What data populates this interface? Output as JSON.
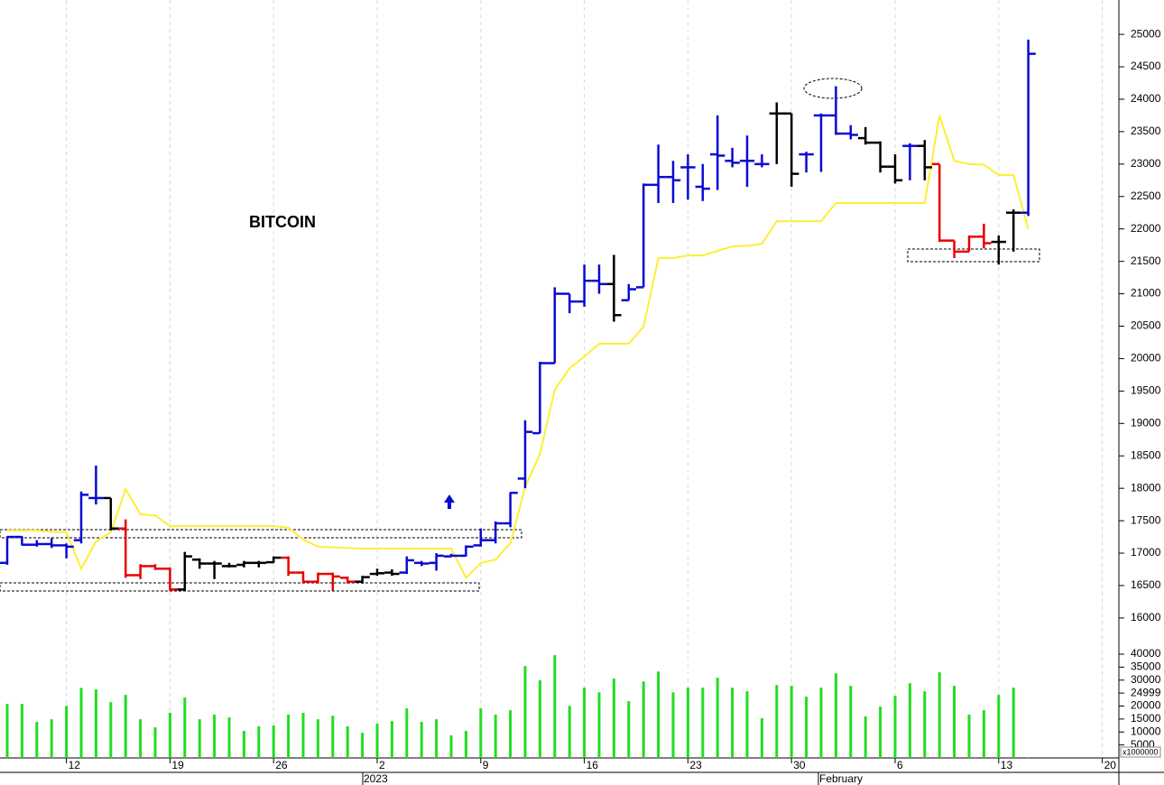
{
  "chart_data": {
    "type": "ohlc",
    "title": "BITCOIN",
    "categories": [
      null,
      null,
      null,
      null,
      "12",
      null,
      null,
      null,
      null,
      null,
      null,
      "19",
      null,
      null,
      null,
      null,
      null,
      null,
      "26",
      null,
      null,
      null,
      null,
      null,
      null,
      "2",
      null,
      null,
      null,
      null,
      null,
      null,
      "9",
      null,
      null,
      null,
      null,
      null,
      null,
      "16",
      null,
      null,
      null,
      null,
      null,
      null,
      "23",
      null,
      null,
      null,
      null,
      null,
      null,
      "30",
      null,
      null,
      null,
      null,
      null,
      null,
      "6",
      null,
      null,
      null,
      null,
      null,
      null,
      "13",
      null,
      null,
      null,
      null,
      null,
      null,
      "20"
    ],
    "period_labels": [
      "2023",
      "February"
    ],
    "open": [
      16850,
      17250,
      17130,
      17140,
      17120,
      17200,
      17850,
      17850,
      17380,
      16660,
      16800,
      16760,
      16440,
      16900,
      16840,
      16800,
      16820,
      16850,
      16860,
      16930,
      16700,
      16560,
      16680,
      16620,
      16560,
      16680,
      16700,
      16700,
      16850,
      16850,
      16950,
      16960,
      17120,
      17200,
      17460,
      18150,
      18850,
      19930,
      21000,
      20880,
      21200,
      21150,
      20900,
      21100,
      22680,
      22800,
      22950,
      22650,
      23150,
      23050,
      23050,
      23000,
      23780,
      23780,
      23150,
      23750,
      23750,
      23470,
      23400,
      23330,
      22960,
      23280,
      23280,
      23000,
      21820,
      21650,
      21880,
      21800,
      22250,
      22250,
      null,
      null,
      null,
      null,
      null
    ],
    "high": [
      17260,
      17260,
      17200,
      17230,
      17150,
      17950,
      18350,
      17850,
      17520,
      16830,
      16830,
      16780,
      17020,
      16920,
      16880,
      16850,
      16880,
      16880,
      16950,
      16950,
      16720,
      16700,
      16700,
      16640,
      16650,
      16760,
      16750,
      16950,
      16880,
      17000,
      16990,
      17120,
      17380,
      17490,
      17940,
      19050,
      19950,
      21100,
      21000,
      21450,
      21450,
      21600,
      21150,
      22700,
      23300,
      23050,
      23150,
      23000,
      23750,
      23250,
      23440,
      23150,
      23950,
      23780,
      23190,
      23780,
      24200,
      23600,
      23570,
      23350,
      23150,
      23320,
      23370,
      23000,
      21820,
      21900,
      22080,
      21900,
      22300,
      24920,
      null,
      null,
      null,
      null,
      null
    ],
    "low": [
      16820,
      17120,
      17100,
      17080,
      16920,
      17150,
      17750,
      17350,
      16620,
      16600,
      16740,
      16420,
      16420,
      16760,
      16600,
      16780,
      16780,
      16780,
      16850,
      16650,
      16530,
      16530,
      16420,
      16530,
      16530,
      16650,
      16650,
      16680,
      16800,
      16730,
      16940,
      16950,
      17100,
      17150,
      17400,
      18000,
      18850,
      19930,
      20700,
      20800,
      21000,
      20570,
      20900,
      21100,
      22400,
      22400,
      22450,
      22430,
      22600,
      22950,
      22650,
      22950,
      23000,
      22650,
      22870,
      22880,
      23450,
      23380,
      23300,
      22870,
      22700,
      22750,
      22750,
      21800,
      21550,
      21650,
      21700,
      21450,
      21650,
      22200,
      null,
      null,
      null,
      null,
      null
    ],
    "close": [
      17250,
      17130,
      17140,
      17120,
      17100,
      17900,
      17850,
      17380,
      16660,
      16800,
      16760,
      16440,
      16950,
      16840,
      16840,
      16800,
      16850,
      16850,
      16930,
      16700,
      16560,
      16680,
      16640,
      16560,
      16630,
      16690,
      16680,
      16890,
      16840,
      16960,
      16960,
      17100,
      17200,
      17460,
      17930,
      18870,
      19930,
      21000,
      20880,
      21200,
      21150,
      20670,
      21070,
      22680,
      22800,
      22750,
      22950,
      22620,
      23130,
      23020,
      23050,
      23000,
      23780,
      22850,
      23150,
      23750,
      23470,
      23450,
      23330,
      22960,
      22750,
      23280,
      22950,
      21820,
      21650,
      21880,
      21780,
      21800,
      22250,
      24700,
      null,
      null,
      null,
      null,
      null
    ],
    "bar_colors": [
      "#0a0ad2",
      "#0a0ad2",
      "#0a0ad2",
      "#0a0ad2",
      "#0a0ad2",
      "#0a0ad2",
      "#0a0ad2",
      "#000000",
      "#e80000",
      "#e80000",
      "#e80000",
      "#e80000",
      "#000000",
      "#000000",
      "#000000",
      "#000000",
      "#000000",
      "#000000",
      "#000000",
      "#e80000",
      "#e80000",
      "#e80000",
      "#e80000",
      "#e80000",
      "#000000",
      "#000000",
      "#000000",
      "#0a0ad2",
      "#0a0ad2",
      "#0a0ad2",
      "#0a0ad2",
      "#0a0ad2",
      "#0a0ad2",
      "#0a0ad2",
      "#0a0ad2",
      "#0a0ad2",
      "#0a0ad2",
      "#0a0ad2",
      "#0a0ad2",
      "#0a0ad2",
      "#0a0ad2",
      "#000000",
      "#0a0ad2",
      "#0a0ad2",
      "#0a0ad2",
      "#0a0ad2",
      "#0a0ad2",
      "#0a0ad2",
      "#0a0ad2",
      "#0a0ad2",
      "#0a0ad2",
      "#0a0ad2",
      "#000000",
      "#000000",
      "#0a0ad2",
      "#0a0ad2",
      "#0a0ad2",
      "#0a0ad2",
      "#000000",
      "#000000",
      "#000000",
      "#0a0ad2",
      "#000000",
      "#e80000",
      "#e80000",
      "#e80000",
      "#e80000",
      "#000000",
      "#000000",
      "#0a0ad2",
      null,
      null,
      null,
      null,
      null
    ],
    "ylim": [
      15790,
      25530
    ],
    "yticks": [
      16000,
      16500,
      17000,
      17500,
      18000,
      18500,
      19000,
      19500,
      20000,
      20500,
      21000,
      21500,
      22000,
      22500,
      23000,
      23500,
      24000,
      24500,
      25000
    ],
    "grid": true,
    "trailing_stop": {
      "color": "#ffee33",
      "values": [
        17350,
        17350,
        17350,
        17330,
        17320,
        16760,
        17180,
        17320,
        17990,
        17600,
        17580,
        17420,
        17420,
        17420,
        17420,
        17420,
        17420,
        17420,
        17420,
        17390,
        17210,
        17100,
        17090,
        17080,
        17070,
        17070,
        17070,
        17070,
        17070,
        17070,
        17070,
        16620,
        16850,
        16900,
        17150,
        18020,
        18530,
        19520,
        19850,
        20030,
        20230,
        20230,
        20230,
        20490,
        21550,
        21550,
        21590,
        21590,
        21660,
        21730,
        21740,
        21770,
        22120,
        22120,
        22120,
        22120,
        22400,
        22400,
        22400,
        22400,
        22400,
        22400,
        22400,
        23750,
        23050,
        23000,
        22990,
        22830,
        22830,
        22000,
        null,
        null,
        null,
        null,
        null
      ]
    },
    "volume": {
      "color": "#22dd22",
      "values": [
        20800,
        20800,
        13900,
        14900,
        20100,
        27000,
        26400,
        21500,
        24300,
        14900,
        11800,
        17400,
        23300,
        14900,
        16700,
        15600,
        10400,
        12200,
        12500,
        16700,
        17400,
        14900,
        16300,
        12200,
        9700,
        13200,
        14200,
        19100,
        13900,
        14900,
        8700,
        10400,
        19100,
        16700,
        18400,
        35400,
        29900,
        39600,
        20100,
        27100,
        25300,
        30600,
        21900,
        29500,
        33300,
        25300,
        27100,
        27100,
        30900,
        27100,
        25700,
        15300,
        28100,
        27800,
        23600,
        27100,
        32600,
        27800,
        16000,
        19800,
        24000,
        28800,
        25700,
        33000,
        27800,
        16700,
        18400,
        24300,
        27100,
        300,
        null,
        null,
        null,
        null,
        null
      ],
      "ylim": [
        0,
        40000
      ],
      "yticks": [
        5000,
        10000,
        15000,
        20000,
        24999,
        30000,
        35000,
        40000
      ],
      "unit_label": "x1000000"
    }
  }
}
